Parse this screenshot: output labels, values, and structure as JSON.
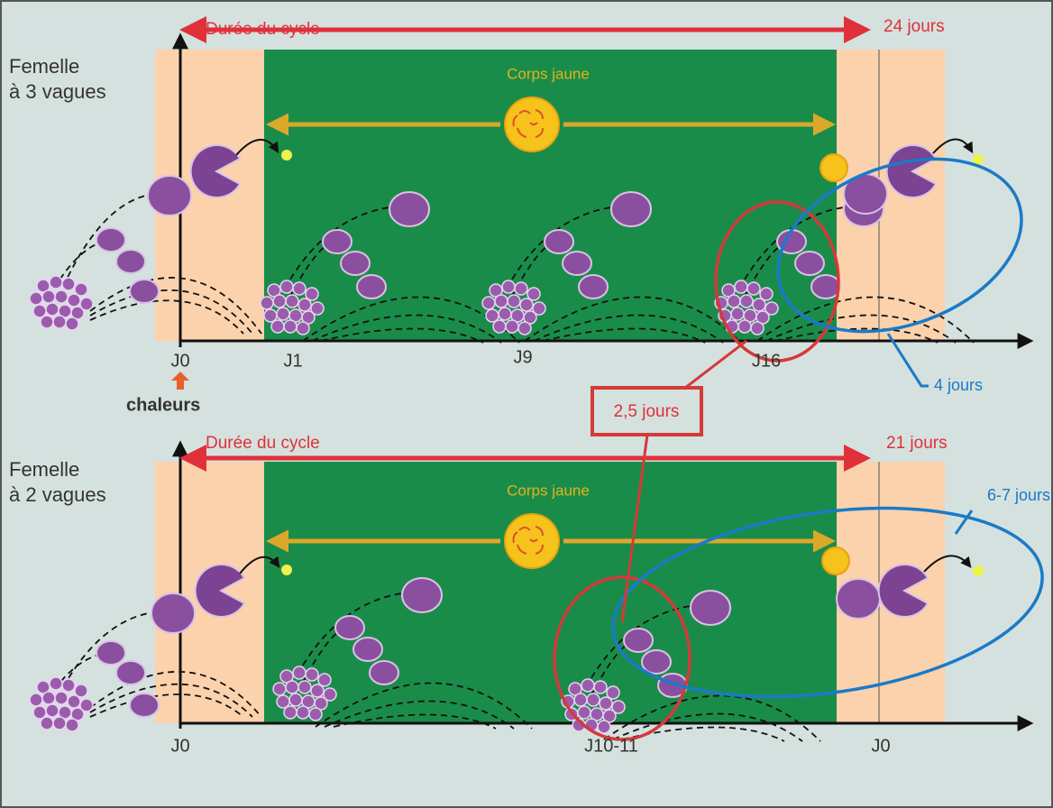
{
  "panels": [
    {
      "subject": [
        "Femelle",
        "à 3 vagues"
      ],
      "cycle": "Durée du cycle",
      "cycle_length": "24 jours",
      "corps_jaune": "Corps jaune",
      "days": [
        "J0",
        "J1",
        "J9",
        "J16"
      ],
      "heat": "chaleurs",
      "wave_interval": "4 jours"
    },
    {
      "subject": [
        "Femelle",
        "à 2 vagues"
      ],
      "cycle": "Durée du cycle",
      "cycle_length": "21 jours",
      "corps_jaune": "Corps jaune",
      "days": [
        "J0",
        "J10-11",
        "J0"
      ],
      "wave_interval": "6-7 jours"
    }
  ],
  "shared_interval": "2,5 jours"
}
